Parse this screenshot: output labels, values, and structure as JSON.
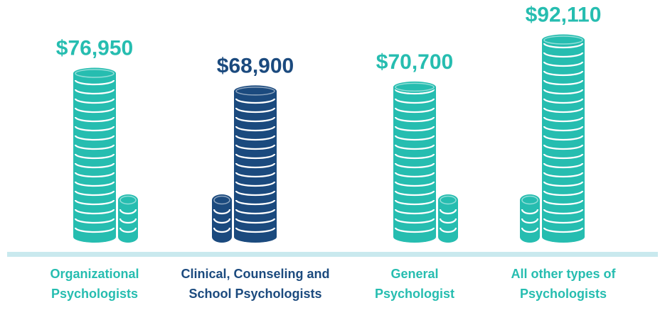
{
  "chart_data": {
    "type": "coin-stack",
    "categories": [
      "Organizational Psychologists",
      "Clinical, Counseling and School Psychologists",
      "General Psychologist",
      "All other types of Psychologists"
    ],
    "values": [
      76950,
      68900,
      70700,
      92110
    ],
    "value_labels": [
      "$76,950",
      "$68,900",
      "$70,700",
      "$92,110"
    ],
    "colors": [
      "#26bdb0",
      "#1b4a7e",
      "#26bdb0",
      "#26bdb0"
    ],
    "ylim": [
      0,
      100000
    ]
  }
}
